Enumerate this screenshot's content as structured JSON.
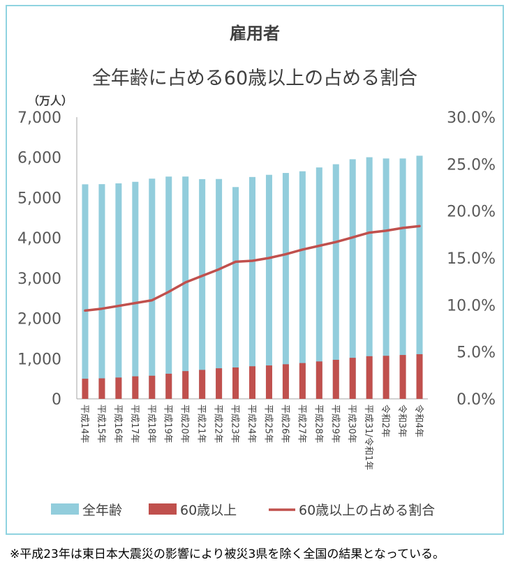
{
  "title": "雇用者",
  "subtitle": "全年齢に占める60歳以上の占める割合",
  "unit_label": "（万人）",
  "footnote": "※平成23年は東日本大震災の影響により被災3県を除く全国の結果となっている。",
  "colors": {
    "all_ages": "#92cddc",
    "over60": "#c0504d",
    "ratio_line": "#c0504d",
    "axis": "#a6a6a6",
    "frame": "#8fd3e0"
  },
  "chart_data": {
    "type": "bar",
    "categories": [
      "平成14年",
      "平成15年",
      "平成16年",
      "平成17年",
      "平成18年",
      "平成19年",
      "平成20年",
      "平成21年",
      "平成22年",
      "平成23年",
      "平成24年",
      "平成25年",
      "平成26年",
      "平成27年",
      "平成28年",
      "平成29年",
      "平成30年",
      "平成31/令和1年",
      "令和2年",
      "令和3年",
      "令和4年"
    ],
    "series": [
      {
        "name": "全年齢",
        "type": "bar",
        "axis": "left",
        "values": [
          5331,
          5335,
          5355,
          5393,
          5472,
          5523,
          5524,
          5460,
          5463,
          5263,
          5513,
          5567,
          5613,
          5655,
          5750,
          5830,
          5954,
          6004,
          5973,
          5973,
          6041
        ]
      },
      {
        "name": "60歳以上",
        "type": "bar",
        "axis": "left",
        "values": [
          500,
          510,
          530,
          560,
          575,
          625,
          690,
          720,
          760,
          780,
          810,
          830,
          860,
          890,
          930,
          970,
          1020,
          1060,
          1070,
          1090,
          1110
        ]
      },
      {
        "name": "60歳以上の占める割合",
        "type": "line",
        "axis": "right",
        "values": [
          9.4,
          9.6,
          9.9,
          10.2,
          10.5,
          11.4,
          12.4,
          13.1,
          13.8,
          14.6,
          14.7,
          15.0,
          15.4,
          15.9,
          16.3,
          16.7,
          17.2,
          17.7,
          17.9,
          18.2,
          18.4
        ]
      }
    ],
    "y_left": {
      "min": 0,
      "max": 7000,
      "ticks": [
        "0",
        "1,000",
        "2,000",
        "3,000",
        "4,000",
        "5,000",
        "6,000",
        "7,000"
      ]
    },
    "y_right": {
      "min": 0,
      "max": 30,
      "ticks": [
        "0.0%",
        "5.0%",
        "10.0%",
        "15.0%",
        "20.0%",
        "25.0%",
        "30.0%"
      ]
    },
    "legend": [
      "全年齢",
      "60歳以上",
      "60歳以上の占める割合"
    ],
    "legend_position": "bottom",
    "grid": false
  }
}
